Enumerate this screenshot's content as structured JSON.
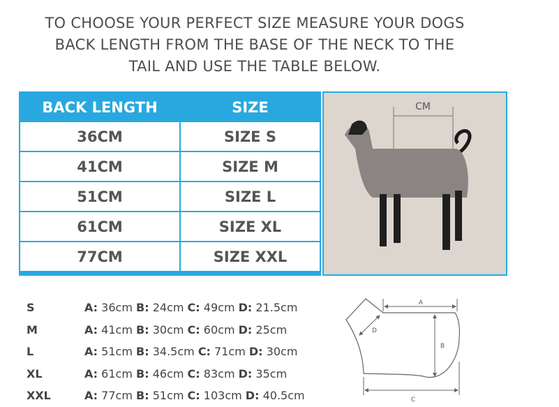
{
  "intro": {
    "line1": "TO CHOOSE YOUR PERFECT SIZE MEASURE YOUR DOGS",
    "line2": "BACK LENGTH FROM THE BASE OF THE NECK TO THE",
    "line3": "TAIL AND USE THE TABLE BELOW."
  },
  "table": {
    "headers": [
      "BACK LENGTH",
      "SIZE"
    ],
    "rows": [
      [
        "36CM",
        "SIZE S"
      ],
      [
        "41CM",
        "SIZE M"
      ],
      [
        "51CM",
        "SIZE L"
      ],
      [
        "61CM",
        "SIZE XL"
      ],
      [
        "77CM",
        "SIZE XXL"
      ]
    ]
  },
  "photo": {
    "measure_label": "CM"
  },
  "measurements": [
    {
      "size": "S",
      "A": "36cm",
      "B": "24cm",
      "C": "49cm",
      "D": "21.5cm"
    },
    {
      "size": "M",
      "A": "41cm",
      "B": "30cm",
      "C": "60cm",
      "D": "25cm"
    },
    {
      "size": "L",
      "A": "51cm",
      "B": "34.5cm",
      "C": "71cm",
      "D": "30cm"
    },
    {
      "size": "XL",
      "A": "61cm",
      "B": "46cm",
      "C": "83cm",
      "D": "35cm"
    },
    {
      "size": "XXL",
      "A": "77cm",
      "B": "51cm",
      "C": "103cm",
      "D": "40.5cm"
    }
  ],
  "labels": {
    "A": "A:",
    "B": "B:",
    "C": "C:",
    "D": "D:"
  },
  "diagram": {
    "A": "A",
    "B": "B",
    "C": "C",
    "D": "D"
  },
  "colors": {
    "accent": "#29a8df"
  }
}
